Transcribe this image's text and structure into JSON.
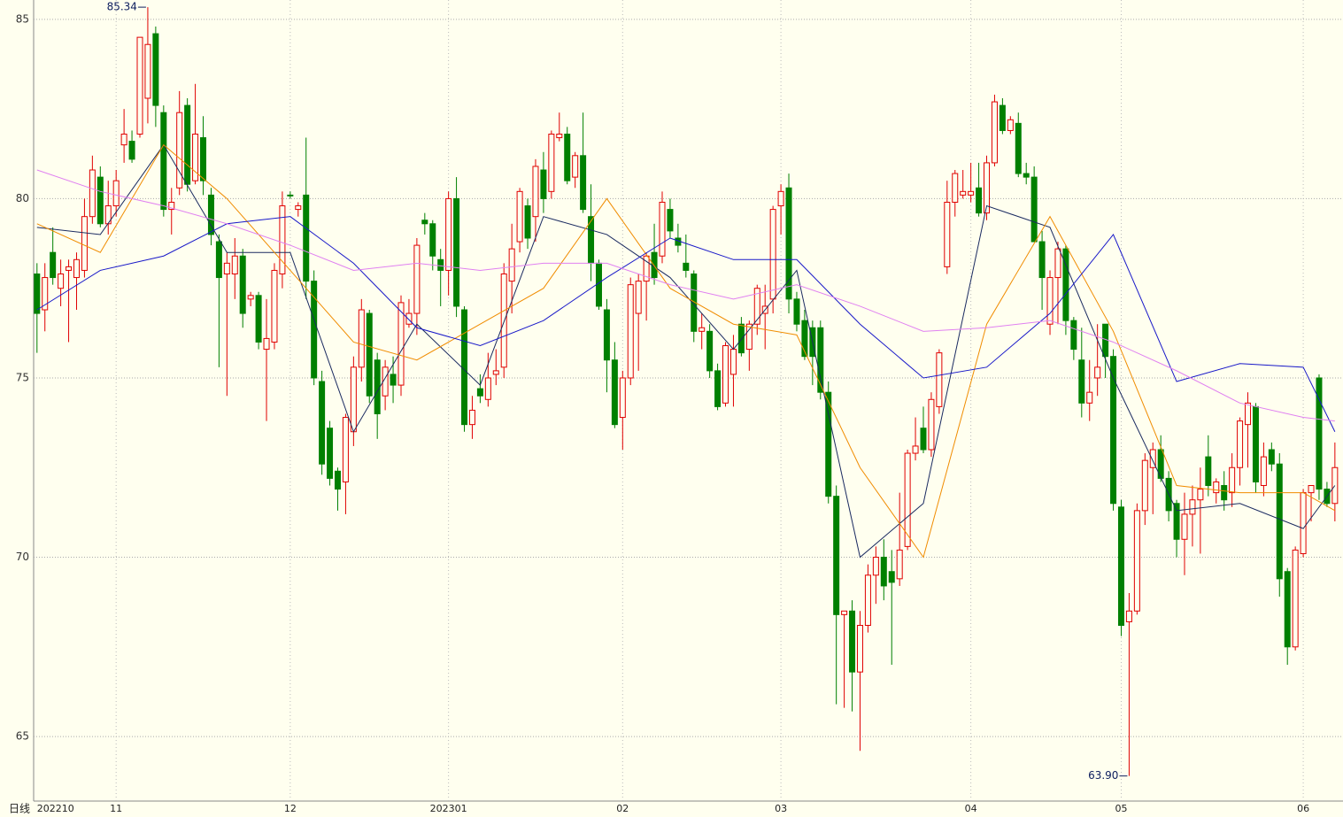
{
  "chart_data": {
    "type": "candlestick",
    "period_label": "日线",
    "high_label": "85.34",
    "low_label": "63.90",
    "up_color": "#e00000",
    "down_color": "#008000",
    "ylim": [
      63.2,
      85.54
    ],
    "yticks": [
      65,
      70,
      75,
      80,
      85
    ],
    "grid": true,
    "xlim": [
      -0.2,
      164.8
    ],
    "xticks": [
      {
        "value": 0,
        "label": "202210"
      },
      {
        "value": 10,
        "label": "11"
      },
      {
        "value": 32,
        "label": "12"
      },
      {
        "value": 52,
        "label": "202301"
      },
      {
        "value": 74,
        "label": "02"
      },
      {
        "value": 94,
        "label": "03"
      },
      {
        "value": 118,
        "label": "04"
      },
      {
        "value": 137,
        "label": "05"
      },
      {
        "value": 160,
        "label": "06"
      }
    ],
    "ohlc": [
      [
        77.9,
        78.2,
        75.7,
        76.8
      ],
      [
        76.9,
        78.2,
        76.3,
        77.8
      ],
      [
        78.5,
        79.2,
        77.6,
        77.8
      ],
      [
        77.5,
        78.3,
        77.0,
        77.9
      ],
      [
        78.0,
        78.3,
        76.0,
        78.1
      ],
      [
        77.8,
        78.5,
        76.9,
        78.3
      ],
      [
        78.0,
        80.0,
        77.8,
        79.5
      ],
      [
        79.5,
        81.2,
        79.3,
        80.8
      ],
      [
        80.6,
        80.9,
        79.2,
        79.3
      ],
      [
        79.3,
        80.5,
        79.0,
        79.8
      ],
      [
        79.8,
        80.8,
        79.5,
        80.5
      ],
      [
        81.5,
        82.5,
        81.0,
        81.8
      ],
      [
        81.6,
        81.9,
        81.0,
        81.1
      ],
      [
        81.8,
        84.5,
        81.7,
        84.5
      ],
      [
        82.8,
        85.34,
        82.1,
        84.3
      ],
      [
        84.6,
        84.8,
        82.0,
        82.6
      ],
      [
        82.4,
        82.6,
        79.5,
        79.7
      ],
      [
        79.7,
        80.3,
        79.0,
        79.9
      ],
      [
        80.3,
        83.0,
        80.1,
        82.4
      ],
      [
        82.6,
        82.8,
        80.2,
        80.4
      ],
      [
        80.5,
        83.2,
        80.4,
        81.8
      ],
      [
        81.7,
        82.3,
        80.1,
        80.5
      ],
      [
        80.1,
        80.3,
        78.7,
        79.0
      ],
      [
        78.8,
        79.0,
        75.3,
        77.8
      ],
      [
        77.9,
        78.5,
        74.5,
        78.2
      ],
      [
        77.9,
        78.9,
        77.2,
        78.4
      ],
      [
        78.4,
        78.6,
        76.4,
        76.8
      ],
      [
        77.2,
        77.4,
        77.0,
        77.3
      ],
      [
        77.3,
        77.4,
        75.8,
        76.0
      ],
      [
        75.8,
        77.2,
        73.8,
        76.1
      ],
      [
        76.0,
        78.2,
        75.8,
        78.0
      ],
      [
        77.9,
        80.2,
        77.5,
        79.8
      ],
      [
        80.1,
        80.2,
        80.0,
        80.1
      ],
      [
        79.7,
        79.9,
        79.5,
        79.8
      ],
      [
        80.1,
        81.7,
        77.2,
        77.7
      ],
      [
        77.7,
        78.0,
        74.8,
        75.0
      ],
      [
        74.9,
        75.2,
        72.3,
        72.6
      ],
      [
        73.6,
        73.8,
        72.0,
        72.2
      ],
      [
        72.4,
        72.5,
        71.3,
        71.9
      ],
      [
        72.1,
        74.0,
        71.2,
        73.9
      ],
      [
        73.5,
        75.6,
        73.1,
        75.3
      ],
      [
        75.3,
        77.2,
        74.9,
        76.9
      ],
      [
        76.8,
        76.9,
        74.3,
        74.5
      ],
      [
        75.5,
        75.7,
        73.3,
        74.0
      ],
      [
        74.5,
        75.5,
        74.1,
        75.3
      ],
      [
        75.1,
        75.6,
        74.3,
        74.8
      ],
      [
        74.8,
        77.3,
        74.5,
        77.1
      ],
      [
        76.5,
        77.2,
        76.4,
        76.8
      ],
      [
        76.8,
        78.9,
        76.2,
        78.7
      ],
      [
        79.4,
        79.6,
        79.0,
        79.3
      ],
      [
        79.3,
        79.4,
        78.0,
        78.4
      ],
      [
        78.3,
        78.6,
        77.0,
        78.0
      ],
      [
        78.0,
        80.2,
        77.3,
        80.0
      ],
      [
        80.0,
        80.6,
        76.7,
        77.0
      ],
      [
        76.9,
        77.0,
        73.5,
        73.7
      ],
      [
        73.7,
        74.5,
        73.3,
        74.1
      ],
      [
        74.7,
        75.1,
        74.3,
        74.5
      ],
      [
        74.4,
        75.7,
        74.2,
        75.0
      ],
      [
        75.1,
        75.8,
        74.8,
        75.2
      ],
      [
        75.3,
        78.2,
        75.0,
        77.9
      ],
      [
        77.7,
        79.3,
        76.8,
        78.6
      ],
      [
        78.8,
        80.3,
        78.5,
        80.2
      ],
      [
        79.8,
        80.0,
        78.6,
        78.9
      ],
      [
        79.5,
        81.1,
        78.8,
        80.9
      ],
      [
        80.8,
        81.3,
        79.6,
        80.0
      ],
      [
        80.2,
        81.9,
        80.0,
        81.8
      ],
      [
        81.7,
        82.4,
        81.6,
        81.8
      ],
      [
        81.8,
        82.0,
        80.4,
        80.5
      ],
      [
        80.6,
        81.3,
        80.3,
        81.2
      ],
      [
        81.2,
        82.4,
        79.6,
        79.7
      ],
      [
        79.5,
        80.4,
        77.7,
        78.2
      ],
      [
        78.2,
        78.3,
        76.9,
        77.0
      ],
      [
        76.9,
        77.2,
        74.6,
        75.5
      ],
      [
        75.5,
        76.0,
        73.6,
        73.7
      ],
      [
        73.9,
        75.2,
        73.0,
        75.0
      ],
      [
        75.0,
        77.8,
        74.8,
        77.6
      ],
      [
        76.8,
        77.9,
        75.2,
        77.7
      ],
      [
        77.7,
        78.5,
        76.6,
        78.4
      ],
      [
        78.5,
        79.3,
        77.6,
        77.8
      ],
      [
        78.4,
        80.2,
        78.2,
        79.9
      ],
      [
        79.7,
        80.0,
        78.9,
        79.1
      ],
      [
        78.9,
        79.3,
        78.5,
        78.7
      ],
      [
        78.2,
        79.0,
        77.8,
        78.0
      ],
      [
        77.9,
        78.0,
        76.0,
        76.3
      ],
      [
        76.3,
        76.8,
        75.8,
        76.4
      ],
      [
        76.3,
        76.5,
        75.0,
        75.2
      ],
      [
        75.2,
        75.4,
        74.1,
        74.2
      ],
      [
        74.3,
        76.0,
        74.2,
        75.9
      ],
      [
        75.1,
        76.2,
        74.2,
        75.8
      ],
      [
        76.5,
        76.7,
        75.6,
        75.7
      ],
      [
        75.8,
        76.6,
        75.2,
        76.5
      ],
      [
        76.5,
        77.6,
        76.2,
        77.5
      ],
      [
        76.8,
        77.6,
        75.8,
        77.0
      ],
      [
        77.2,
        79.8,
        76.8,
        79.7
      ],
      [
        79.8,
        80.4,
        79.0,
        80.2
      ],
      [
        80.3,
        80.7,
        76.8,
        77.2
      ],
      [
        77.2,
        77.4,
        76.3,
        76.5
      ],
      [
        76.6,
        76.9,
        75.5,
        75.6
      ],
      [
        76.4,
        76.6,
        74.8,
        75.6
      ],
      [
        76.4,
        76.6,
        74.4,
        74.6
      ],
      [
        74.6,
        74.9,
        71.5,
        71.7
      ],
      [
        71.7,
        72.0,
        65.9,
        68.4
      ],
      [
        68.4,
        68.5,
        65.8,
        68.5
      ],
      [
        68.5,
        68.8,
        65.7,
        66.8
      ],
      [
        66.8,
        68.5,
        64.6,
        68.1
      ],
      [
        68.1,
        69.8,
        67.9,
        69.5
      ],
      [
        69.5,
        70.3,
        68.7,
        70.0
      ],
      [
        70.0,
        70.5,
        68.8,
        69.2
      ],
      [
        69.6,
        70.2,
        67.0,
        69.3
      ],
      [
        69.4,
        71.8,
        69.2,
        70.2
      ],
      [
        70.3,
        73.0,
        70.2,
        72.9
      ],
      [
        72.9,
        73.9,
        72.7,
        73.1
      ],
      [
        73.6,
        74.2,
        72.9,
        73.0
      ],
      [
        73.0,
        74.6,
        72.8,
        74.4
      ],
      [
        74.2,
        75.8,
        74.0,
        75.7
      ],
      [
        78.1,
        80.5,
        77.9,
        79.9
      ],
      [
        79.9,
        80.8,
        79.5,
        80.7
      ],
      [
        80.1,
        80.8,
        80.0,
        80.2
      ],
      [
        80.1,
        81.0,
        79.9,
        80.2
      ],
      [
        80.3,
        81.0,
        79.5,
        79.6
      ],
      [
        79.6,
        81.2,
        79.4,
        81.0
      ],
      [
        81.0,
        82.9,
        80.9,
        82.7
      ],
      [
        82.6,
        82.8,
        81.8,
        81.9
      ],
      [
        81.9,
        82.3,
        81.8,
        82.2
      ],
      [
        82.1,
        82.4,
        80.6,
        80.7
      ],
      [
        80.7,
        81.0,
        80.4,
        80.6
      ],
      [
        80.6,
        80.9,
        78.8,
        78.8
      ],
      [
        78.8,
        79.1,
        76.9,
        77.8
      ],
      [
        76.5,
        78.0,
        76.2,
        77.8
      ],
      [
        77.8,
        78.8,
        76.5,
        78.6
      ],
      [
        78.6,
        78.7,
        76.2,
        76.6
      ],
      [
        76.6,
        76.7,
        75.5,
        75.8
      ],
      [
        75.5,
        76.4,
        73.9,
        74.3
      ],
      [
        74.3,
        75.5,
        73.8,
        74.6
      ],
      [
        75.0,
        76.5,
        74.5,
        75.3
      ],
      [
        76.5,
        76.5,
        75.0,
        75.6
      ],
      [
        75.6,
        75.8,
        71.3,
        71.5
      ],
      [
        71.4,
        71.6,
        67.8,
        68.1
      ],
      [
        68.2,
        69.0,
        63.9,
        68.5
      ],
      [
        68.5,
        71.5,
        68.4,
        71.3
      ],
      [
        71.3,
        72.9,
        70.9,
        72.7
      ],
      [
        72.5,
        73.2,
        71.2,
        73.0
      ],
      [
        73.0,
        73.4,
        72.1,
        72.2
      ],
      [
        72.2,
        72.4,
        71.0,
        71.3
      ],
      [
        71.5,
        71.6,
        70.0,
        70.5
      ],
      [
        70.5,
        71.8,
        69.5,
        71.2
      ],
      [
        71.2,
        72.0,
        70.3,
        71.6
      ],
      [
        71.6,
        72.5,
        70.1,
        71.9
      ],
      [
        72.8,
        73.4,
        71.7,
        72.0
      ],
      [
        71.8,
        72.2,
        71.5,
        72.1
      ],
      [
        72.0,
        72.4,
        71.3,
        71.6
      ],
      [
        71.8,
        72.9,
        71.4,
        72.5
      ],
      [
        72.5,
        73.9,
        72.0,
        73.8
      ],
      [
        73.7,
        74.6,
        72.5,
        74.3
      ],
      [
        74.2,
        74.3,
        71.8,
        72.1
      ],
      [
        72.0,
        73.2,
        71.7,
        72.8
      ],
      [
        73.0,
        73.2,
        72.4,
        72.6
      ],
      [
        72.6,
        72.9,
        68.9,
        69.4
      ],
      [
        69.6,
        69.7,
        67.0,
        67.5
      ],
      [
        67.5,
        70.3,
        67.4,
        70.2
      ],
      [
        70.1,
        71.9,
        70.0,
        71.8
      ],
      [
        71.8,
        72.0,
        71.0,
        72.0
      ],
      [
        75.0,
        75.1,
        71.6,
        71.9
      ],
      [
        71.9,
        72.1,
        71.4,
        71.5
      ],
      [
        71.5,
        73.2,
        71.0,
        72.5
      ]
    ],
    "series": [
      {
        "color": "#1a2a60",
        "x": [
          0,
          8,
          16,
          24,
          32,
          40,
          48,
          56,
          64,
          72,
          80,
          88,
          96,
          104,
          112,
          120,
          128,
          136,
          144,
          152,
          160,
          164
        ],
        "values": [
          79.2,
          79.0,
          81.5,
          78.5,
          78.5,
          73.5,
          76.5,
          74.8,
          79.5,
          79.0,
          77.8,
          75.8,
          78.0,
          70.0,
          71.5,
          79.8,
          79.2,
          75.0,
          71.3,
          71.5,
          70.8,
          72.0
        ]
      },
      {
        "color": "#f08c00",
        "x": [
          0,
          8,
          16,
          24,
          32,
          40,
          48,
          56,
          64,
          72,
          80,
          88,
          96,
          104,
          112,
          120,
          128,
          136,
          144,
          152,
          160,
          164
        ],
        "values": [
          79.3,
          78.5,
          81.5,
          80.0,
          78.0,
          76.0,
          75.5,
          76.5,
          77.5,
          80.0,
          77.5,
          76.5,
          76.2,
          72.5,
          70.0,
          76.5,
          79.5,
          76.3,
          72.0,
          71.8,
          71.8,
          71.3
        ]
      },
      {
        "color": "#1818c8",
        "x": [
          0,
          8,
          16,
          24,
          32,
          40,
          48,
          56,
          64,
          72,
          80,
          88,
          96,
          104,
          112,
          120,
          128,
          136,
          144,
          152,
          160,
          164
        ],
        "values": [
          76.9,
          78.0,
          78.4,
          79.3,
          79.5,
          78.2,
          76.4,
          75.9,
          76.6,
          77.8,
          78.9,
          78.3,
          78.3,
          76.5,
          75.0,
          75.3,
          76.8,
          79.0,
          74.9,
          75.4,
          75.3,
          73.5
        ]
      },
      {
        "color": "#e080f0",
        "x": [
          0,
          8,
          16,
          24,
          32,
          40,
          48,
          56,
          64,
          72,
          80,
          88,
          96,
          104,
          112,
          120,
          128,
          136,
          144,
          152,
          160,
          164
        ],
        "values": [
          80.8,
          80.2,
          79.8,
          79.3,
          78.7,
          78.0,
          78.2,
          78.0,
          78.2,
          78.2,
          77.6,
          77.2,
          77.6,
          77.0,
          76.3,
          76.4,
          76.6,
          76.0,
          75.2,
          74.3,
          73.9,
          73.8
        ]
      }
    ]
  }
}
